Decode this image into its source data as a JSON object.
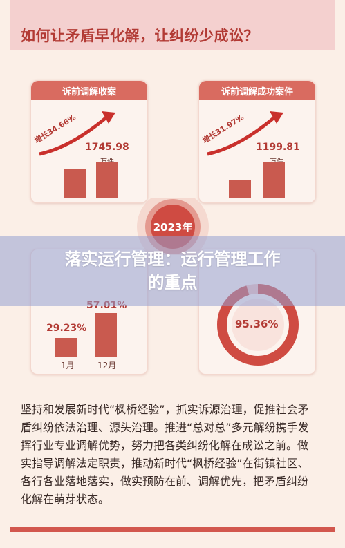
{
  "header": {
    "title": "如何让矛盾早化解，让纠纷少成讼？"
  },
  "card_cases": {
    "tab": "诉前调解收案",
    "growth": "增长34.66%",
    "value": "1745.98",
    "unit": "万件"
  },
  "card_success": {
    "tab": "诉前调解成功案件",
    "growth": "增长31.97%",
    "value": "1199.81",
    "unit": "万件"
  },
  "center": {
    "year": "2023年"
  },
  "banner": {
    "line1": "落实运行管理：运行管理工作",
    "line2": "的重点"
  },
  "card_months": {
    "value_jan": "29.23%",
    "value_dec": "57.01%",
    "label_jan": "1月",
    "label_dec": "12月"
  },
  "card_ratio": {
    "value": "95.36%",
    "fraction": 0.9536
  },
  "paragraph": "坚持和发展新时代“枫桥经验”，抓实诉源治理，促推社会矛盾纠纷依法治理、源头治理。推进“总对总”多元解纷携手发挥行业专业调解优势，努力把各类纠纷化解在成讼之前。做实指导调解法定职责，推动新时代“枫桥经验”在街镇社区、各行各业落地落实，做实预防在前、调解优先，把矛盾纠纷化解在萌芽状态。",
  "colors": {
    "accent": "#c95a4f",
    "title": "#b23a34",
    "tab": "#d96b60"
  }
}
